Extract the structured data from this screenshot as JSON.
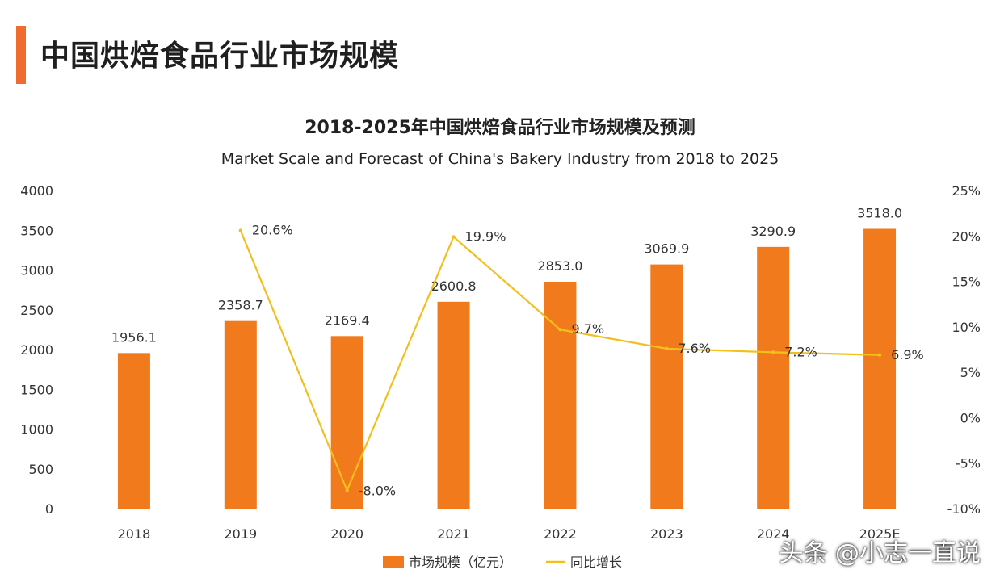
{
  "header": {
    "title": "中国烘焙食品行业市场规模"
  },
  "colors": {
    "accent": "#ef6c2e",
    "bar": "#f07a1c",
    "line": "#f2bf1d"
  },
  "chart_data": {
    "type": "bar",
    "title": "2018-2025年中国烘焙食品行业市场规模及预测",
    "subtitle": "Market Scale and Forecast of China's Bakery Industry from 2018 to 2025",
    "categories": [
      "2018",
      "2019",
      "2020",
      "2021",
      "2022",
      "2023",
      "2024",
      "2025E"
    ],
    "series": [
      {
        "name": "市场规模（亿元）",
        "type": "bar",
        "axis": "left",
        "values": [
          1956.1,
          2358.7,
          2169.4,
          2600.8,
          2853.0,
          3069.9,
          3290.9,
          3518.0
        ],
        "labels": [
          "1956.1",
          "2358.7",
          "2169.4",
          "2600.8",
          "2853.0",
          "3069.9",
          "3290.9",
          "3518.0"
        ]
      },
      {
        "name": "同比增长",
        "type": "line",
        "axis": "right",
        "values": [
          null,
          20.6,
          -8.0,
          19.9,
          9.7,
          7.6,
          7.2,
          6.9
        ],
        "labels": [
          "",
          "20.6%",
          "-8.0%",
          "19.9%",
          "9.7%",
          "7.6%",
          "7.2%",
          "6.9%"
        ]
      }
    ],
    "y_left": {
      "min": 0,
      "max": 4000,
      "ticks": [
        "0",
        "500",
        "1000",
        "1500",
        "2000",
        "2500",
        "3000",
        "3500",
        "4000"
      ]
    },
    "y_right": {
      "min": -10,
      "max": 25,
      "ticks": [
        "-10%",
        "-5%",
        "0%",
        "5%",
        "10%",
        "15%",
        "20%",
        "25%"
      ]
    },
    "grid": false,
    "legend": "bottom"
  },
  "watermark": "头条 @小志一直说"
}
